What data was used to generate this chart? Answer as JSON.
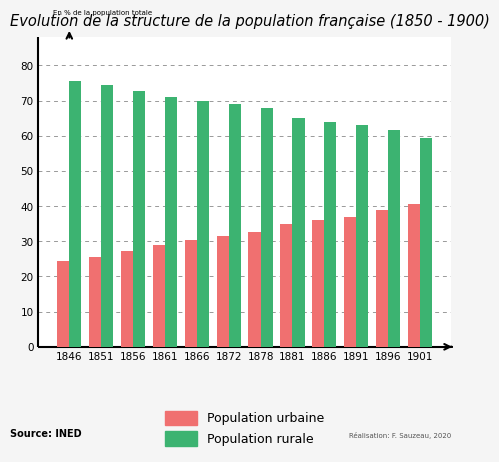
{
  "title": "Evolution de la structure de la population française (1850 - 1900)",
  "ylabel": "En % de la population totale",
  "source": "Source: INED",
  "realisation": "Réalisation: F. Sauzeau, 2020",
  "years": [
    1846,
    1851,
    1856,
    1861,
    1866,
    1872,
    1878,
    1881,
    1886,
    1891,
    1896,
    1901
  ],
  "urban": [
    24.5,
    25.5,
    27.3,
    28.9,
    30.5,
    31.5,
    32.5,
    35.0,
    36.0,
    37.0,
    39.0,
    40.5
  ],
  "rural": [
    75.5,
    74.5,
    72.7,
    71.1,
    70.0,
    69.0,
    68.0,
    65.0,
    64.0,
    63.0,
    61.5,
    59.5
  ],
  "urban_color": "#F07070",
  "rural_color": "#3CB371",
  "background_color": "#FFFFFF",
  "bar_width": 0.38,
  "ylim": [
    0,
    88
  ],
  "yticks": [
    0,
    10,
    20,
    30,
    40,
    50,
    60,
    70,
    80
  ],
  "grid_color": "#999999",
  "legend_urban": "Population urbaine",
  "legend_rural": "Population rurale",
  "title_fontsize": 10.5,
  "ylabel_fontsize": 5.0,
  "tick_fontsize": 7.5,
  "legend_fontsize": 9
}
